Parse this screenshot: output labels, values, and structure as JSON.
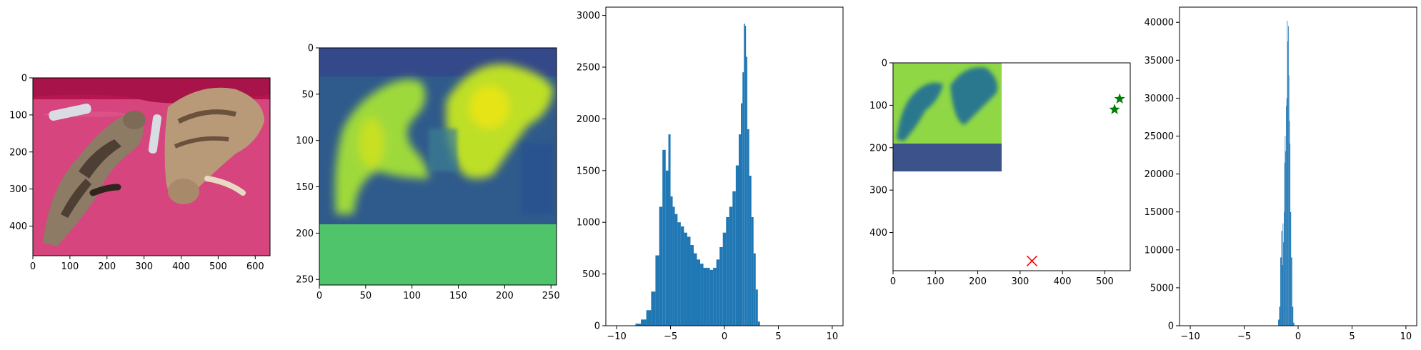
{
  "chart_data": [
    {
      "type": "image",
      "content": "photo of two tabby cats sleeping on a pink blanket with TV remotes",
      "colors": {
        "blanket": "#d6457e",
        "couch": "#b5164f",
        "cat_light": "#cdb797",
        "cat_dark": "#5a4a3e",
        "remote": "#d9dde3"
      },
      "xlim": [
        0,
        640
      ],
      "ylim": [
        480,
        0
      ],
      "xticks": [
        0,
        100,
        200,
        300,
        400,
        500,
        600
      ],
      "yticks": [
        0,
        100,
        200,
        300,
        400
      ],
      "grid": false
    },
    {
      "type": "heatmap",
      "colormap": "viridis",
      "content": "attention map shaped like the two cats, padded region below y=190 filled with constant value",
      "fill_color": "#4fc46a",
      "pad_start_y": 190,
      "xlim": [
        0,
        256
      ],
      "ylim": [
        256,
        0
      ],
      "xticks": [
        0,
        50,
        100,
        150,
        200,
        250
      ],
      "yticks": [
        0,
        50,
        100,
        150,
        200,
        250
      ],
      "grid": false
    },
    {
      "type": "histogram",
      "color": "#1f77b4",
      "xlim": [
        -11,
        11
      ],
      "ylim": [
        0,
        3080
      ],
      "xticks": [
        -10,
        -5,
        0,
        5,
        10
      ],
      "yticks": [
        0,
        500,
        1000,
        1500,
        2000,
        2500,
        3000
      ],
      "x": [
        -8.0,
        -7.5,
        -7.0,
        -6.6,
        -6.2,
        -5.9,
        -5.6,
        -5.3,
        -5.1,
        -4.9,
        -4.7,
        -4.5,
        -4.2,
        -3.9,
        -3.6,
        -3.3,
        -3.0,
        -2.7,
        -2.4,
        -2.1,
        -1.8,
        -1.5,
        -1.2,
        -0.9,
        -0.6,
        -0.3,
        0.0,
        0.3,
        0.6,
        0.9,
        1.2,
        1.45,
        1.6,
        1.75,
        1.85,
        1.95,
        2.05,
        2.2,
        2.4,
        2.6,
        2.8,
        3.0,
        3.2
      ],
      "values": [
        20,
        60,
        150,
        330,
        680,
        1150,
        1700,
        1500,
        1850,
        1250,
        1150,
        1080,
        1000,
        960,
        900,
        860,
        780,
        700,
        640,
        600,
        560,
        560,
        540,
        560,
        640,
        760,
        900,
        1050,
        1150,
        1300,
        1550,
        1850,
        2150,
        2450,
        2920,
        2900,
        2600,
        1900,
        1450,
        1050,
        700,
        350,
        40
      ],
      "grid": false
    },
    {
      "type": "scatter",
      "content": "small inset image of the cats (viridis) in top-left corner, with markers",
      "inset_extent": {
        "x": [
          0,
          256
        ],
        "y": [
          0,
          256
        ]
      },
      "xlim": [
        0,
        560
      ],
      "ylim": [
        490,
        0
      ],
      "xticks": [
        0,
        100,
        200,
        300,
        400,
        500
      ],
      "yticks": [
        0,
        100,
        200,
        300,
        400
      ],
      "series": [
        {
          "marker": "star",
          "color": "#008000",
          "points": [
            [
              535,
              85
            ],
            [
              523,
              110
            ]
          ]
        },
        {
          "marker": "x",
          "color": "#ff0000",
          "points": [
            [
              328,
              467
            ]
          ]
        }
      ],
      "grid": false
    },
    {
      "type": "histogram",
      "color": "#1f77b4",
      "xlim": [
        -11,
        11
      ],
      "ylim": [
        0,
        42000
      ],
      "xticks": [
        -10,
        -5,
        0,
        5,
        10
      ],
      "yticks": [
        0,
        5000,
        10000,
        15000,
        20000,
        25000,
        30000,
        35000,
        40000
      ],
      "x": [
        -1.8,
        -1.7,
        -1.6,
        -1.5,
        -1.45,
        -1.4,
        -1.35,
        -1.3,
        -1.25,
        -1.2,
        -1.15,
        -1.1,
        -1.05,
        -1.0,
        -0.95,
        -0.9,
        -0.85,
        -0.8,
        -0.75,
        -0.7,
        -0.6,
        -0.5,
        -0.4
      ],
      "values": [
        800,
        2500,
        9000,
        12500,
        8000,
        13500,
        11000,
        15000,
        21500,
        25000,
        23000,
        29000,
        30000,
        40200,
        37500,
        39500,
        33000,
        27000,
        24000,
        15000,
        9000,
        2500,
        400
      ],
      "grid": false
    }
  ]
}
